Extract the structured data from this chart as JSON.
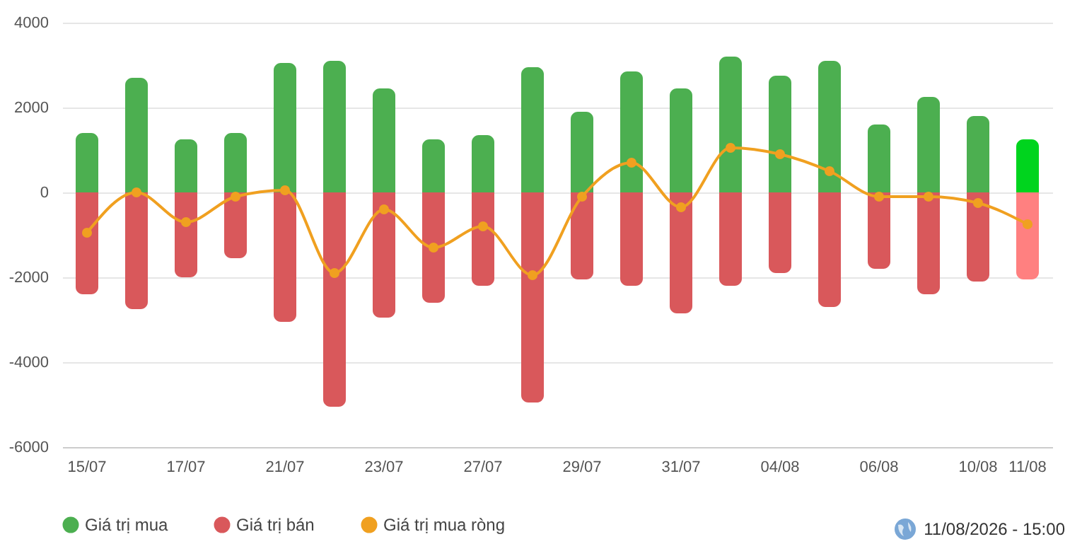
{
  "chart_data": {
    "type": "bar",
    "stacked": true,
    "categories": [
      "15/07",
      null,
      "17/07",
      null,
      "21/07",
      null,
      "23/07",
      null,
      "27/07",
      null,
      "29/07",
      null,
      "31/07",
      null,
      "04/08",
      null,
      "06/08",
      null,
      "10/08",
      "11/08"
    ],
    "series": [
      {
        "name": "Giá trị mua",
        "color": "#4caf50",
        "colors": [
          "#4caf50",
          "#4caf50",
          "#4caf50",
          "#4caf50",
          "#4caf50",
          "#4caf50",
          "#4caf50",
          "#4caf50",
          "#4caf50",
          "#4caf50",
          "#4caf50",
          "#4caf50",
          "#4caf50",
          "#4caf50",
          "#4caf50",
          "#4caf50",
          "#4caf50",
          "#4caf50",
          "#4caf50",
          "#00d41e"
        ],
        "values": [
          1400,
          2700,
          1250,
          1400,
          3050,
          3100,
          2450,
          1250,
          1350,
          2950,
          1900,
          2850,
          2450,
          3200,
          2750,
          3100,
          1600,
          2250,
          1800,
          1250
        ]
      },
      {
        "name": "Giá trị bán",
        "color": "#d9585b",
        "colors": [
          "#d9585b",
          "#d9585b",
          "#d9585b",
          "#d9585b",
          "#d9585b",
          "#d9585b",
          "#d9585b",
          "#d9585b",
          "#d9585b",
          "#d9585b",
          "#d9585b",
          "#d9585b",
          "#d9585b",
          "#d9585b",
          "#d9585b",
          "#d9585b",
          "#d9585b",
          "#d9585b",
          "#d9585b",
          "#ff8080"
        ],
        "values": [
          -2400,
          -2750,
          -2000,
          -1550,
          -3050,
          -5050,
          -2950,
          -2600,
          -2200,
          -4950,
          -2050,
          -2200,
          -2850,
          -2200,
          -1900,
          -2700,
          -1800,
          -2400,
          -2100,
          -2050
        ]
      },
      {
        "name": "Giá trị mua ròng",
        "type": "line",
        "color": "#f0a020",
        "values": [
          -950,
          0,
          -700,
          -100,
          50,
          -1900,
          -400,
          -1300,
          -800,
          -1950,
          -100,
          700,
          -350,
          1050,
          900,
          500,
          -100,
          -100,
          -250,
          -750
        ]
      }
    ],
    "ylim": [
      -6000,
      4000
    ],
    "yticks": [
      -6000,
      -4000,
      -2000,
      0,
      2000,
      4000
    ],
    "grid": "y",
    "legend": "bottom left",
    "marker": "circle",
    "line_style": "solid",
    "annotations": [
      "11/08/2026 - 15:00"
    ]
  }
}
